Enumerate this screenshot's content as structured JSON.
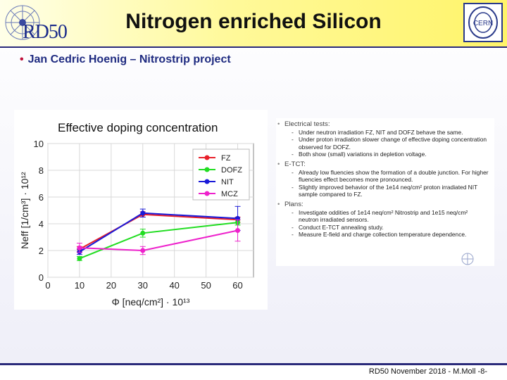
{
  "header": {
    "title": "Nitrogen enriched Silicon",
    "logo_left_text": "RD50",
    "logo_right_text": "CERN"
  },
  "bullet": "Jan Cedric Hoenig – Nitrostrip project",
  "chart_data": {
    "type": "line",
    "title": "Effective doping concentration",
    "xlabel": "Φ [neq/cm²] · 10¹³",
    "ylabel": "Neff [1/cm³] · 10¹²",
    "xlim": [
      0,
      65
    ],
    "ylim": [
      0,
      10
    ],
    "xticks": [
      0,
      10,
      20,
      30,
      40,
      50,
      60
    ],
    "yticks": [
      0,
      2,
      4,
      6,
      8,
      10
    ],
    "grid": true,
    "legend_position": "top-right",
    "series": [
      {
        "name": "FZ",
        "color": "#e8202a",
        "x": [
          10,
          30,
          60
        ],
        "y": [
          2.1,
          4.7,
          4.3
        ],
        "err": [
          0.2,
          0.2,
          0.2
        ]
      },
      {
        "name": "DOFZ",
        "color": "#22dd22",
        "x": [
          10,
          30,
          60
        ],
        "y": [
          1.4,
          3.3,
          4.1
        ],
        "err": [
          0.15,
          0.3,
          0.2
        ]
      },
      {
        "name": "NIT",
        "color": "#1a1ad8",
        "x": [
          10,
          30,
          60
        ],
        "y": [
          1.9,
          4.8,
          4.4
        ],
        "err": [
          0.2,
          0.3,
          0.9
        ]
      },
      {
        "name": "MCZ",
        "color": "#ee22cc",
        "x": [
          10,
          30,
          60
        ],
        "y": [
          2.2,
          2.0,
          3.5
        ],
        "err": [
          0.35,
          0.3,
          0.8
        ]
      }
    ]
  },
  "notes": [
    {
      "heading": "Electrical tests:",
      "items": [
        "Under neutron irradiation FZ, NIT and DOFZ behave the same.",
        "Under proton irradiation slower change of effective doping concentration observed for DOFZ.",
        "Both show (small) variations in depletion voltage."
      ]
    },
    {
      "heading": "E-TCT:",
      "items": [
        "Already low fluencies show the formation of a double junction. For higher fluencies effect becomes more pronounced.",
        "Slightly improved behavior of the 1e14 neq/cm² proton irradiated NIT sample compared to FZ."
      ]
    },
    {
      "heading": "Plans:",
      "items": [
        "Investigate oddities of 1e14 neq/cm² Nitrostrip and 1e15 neq/cm² neutron irradiated sensors.",
        "Conduct E-TCT annealing study.",
        "Measure E-field and charge collection temperature dependence."
      ]
    }
  ],
  "footer": {
    "text": "RD50 November 2018 - M.Moll -8-"
  },
  "colors": {
    "title_blue": "#1e2a80",
    "bullet_red": "#c0103a",
    "header_yellow": "#fff46a"
  }
}
